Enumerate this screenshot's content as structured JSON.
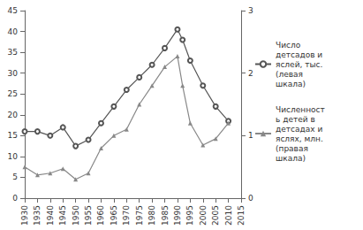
{
  "chart_data": {
    "type": "line",
    "x": [
      1930,
      1935,
      1940,
      1945,
      1950,
      1955,
      1960,
      1965,
      1970,
      1975,
      1980,
      1985,
      1990,
      1992,
      1995,
      2000,
      2005,
      2010
    ],
    "xlim": [
      1930,
      2015
    ],
    "xticks": [
      1930,
      1935,
      1940,
      1945,
      1950,
      1955,
      1960,
      1965,
      1970,
      1975,
      1980,
      1985,
      1990,
      1995,
      2000,
      2005,
      2010,
      2015
    ],
    "ylim": [
      0,
      45
    ],
    "yticks": [
      0,
      5,
      10,
      15,
      20,
      25,
      30,
      35,
      40,
      45
    ],
    "y2lim": [
      0,
      3
    ],
    "y2ticks": [
      0,
      1,
      2,
      3
    ],
    "grid": false,
    "legend": "right",
    "series": [
      {
        "name": "Число детсадов и яслей, тыс. (левая шкала)",
        "color": "#555555",
        "marker": "emptyCircle",
        "line_style": "solid",
        "values": [
          16,
          16,
          15,
          17,
          12.5,
          14,
          18,
          22,
          26,
          29,
          32,
          36,
          40.5,
          38,
          33,
          27,
          22,
          18.5
        ]
      },
      {
        "name": "Численность детей в детсадах и яслях, млн. (правая шкала)",
        "color": "#888888",
        "marker": "triangle",
        "line_style": "solid",
        "axis": "y2",
        "values": [
          0.5,
          0.37,
          0.4,
          0.47,
          0.3,
          0.4,
          0.8,
          1.0,
          1.1,
          1.5,
          1.8,
          2.1,
          2.27,
          1.8,
          1.2,
          0.85,
          0.95,
          1.2
        ]
      }
    ]
  }
}
